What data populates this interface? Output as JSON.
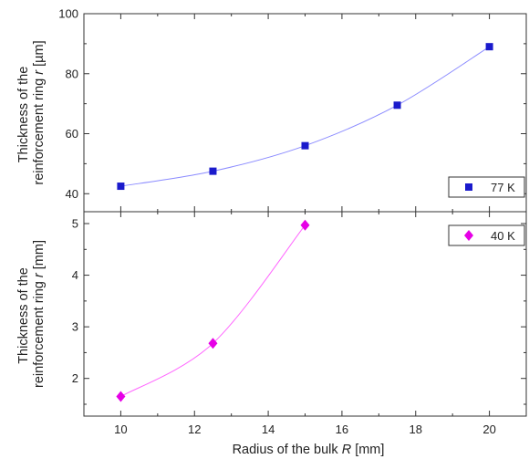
{
  "chart_data": [
    {
      "type": "scatter",
      "panel": "top",
      "xlabel": "",
      "ylabel_lines": [
        "Thickness of the",
        "reinforcement ring "
      ],
      "ylabel_symbol": "r",
      "ylabel_unit": " [µm]",
      "xlim": [
        9,
        21
      ],
      "ylim": [
        34,
        100
      ],
      "y_ticks": [
        40,
        60,
        80,
        100
      ],
      "x_ticks": [
        10,
        12,
        14,
        16,
        18,
        20
      ],
      "grid": false,
      "legend_position": "bottom-right",
      "series": [
        {
          "name": "77 K",
          "marker": "square",
          "color": "#1a1acc",
          "fit_color": "#8b8bff",
          "x": [
            10,
            12.5,
            15,
            17.5,
            20
          ],
          "y": [
            42.5,
            47.5,
            56,
            69.5,
            89
          ]
        }
      ]
    },
    {
      "type": "scatter",
      "panel": "bottom",
      "xlabel_prefix": "Radius of the bulk ",
      "xlabel_symbol": "R",
      "xlabel_unit": " [mm]",
      "ylabel_lines": [
        "Thickness of the",
        "reinforcement ring "
      ],
      "ylabel_symbol": "r",
      "ylabel_unit": " [mm]",
      "xlim": [
        9,
        21
      ],
      "ylim": [
        1.27,
        5.23
      ],
      "y_ticks": [
        2,
        3,
        4,
        5
      ],
      "x_ticks": [
        10,
        12,
        14,
        16,
        18,
        20
      ],
      "x_tick_labels": [
        "10",
        "12",
        "14",
        "16",
        "18",
        "20"
      ],
      "grid": false,
      "legend_position": "top-right",
      "series": [
        {
          "name": "40 K",
          "marker": "diamond",
          "color": "#e600e6",
          "fit_color": "#ff66ff",
          "x": [
            10,
            12.5,
            15
          ],
          "y": [
            1.65,
            2.68,
            4.97
          ]
        }
      ]
    }
  ]
}
